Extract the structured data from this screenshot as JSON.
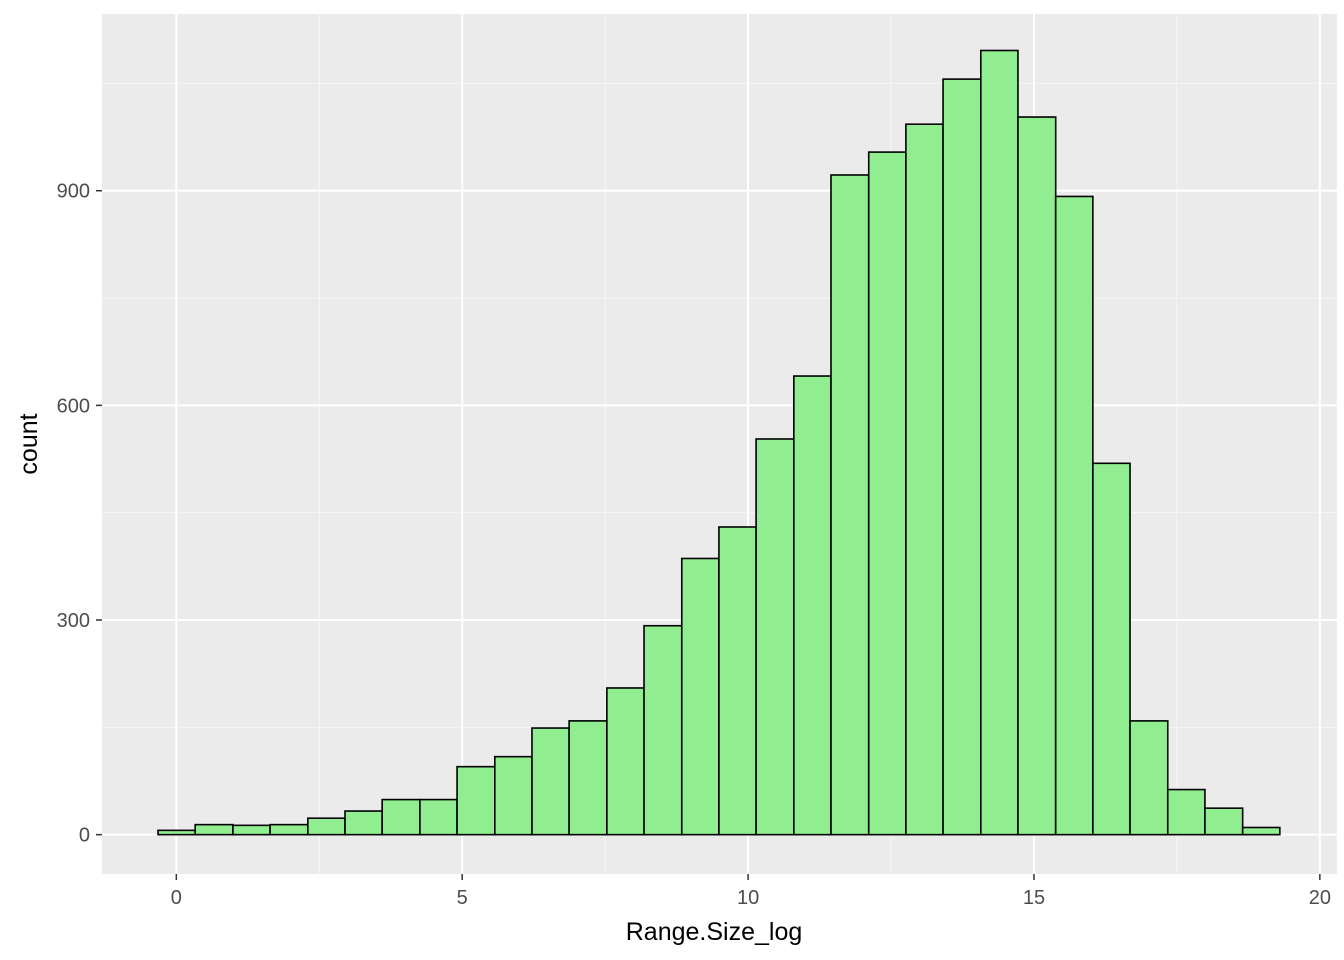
{
  "chart_data": {
    "type": "histogram",
    "title": "",
    "xlabel": "Range.Size_log",
    "ylabel": "count",
    "xlim": [
      -1.3,
      20.3
    ],
    "ylim": [
      -55,
      1147
    ],
    "x_ticks": [
      0,
      5,
      10,
      15,
      20
    ],
    "x_tick_labels": [
      "0",
      "5",
      "10",
      "15",
      "20"
    ],
    "y_ticks": [
      0,
      300,
      600,
      900
    ],
    "y_tick_labels": [
      "0",
      "300",
      "600",
      "900"
    ],
    "grid": true,
    "legend": "none",
    "bin_width": 0.654,
    "bins": [
      {
        "x_start": -0.32,
        "x_end": 0.33,
        "count": 6
      },
      {
        "x_start": 0.33,
        "x_end": 0.99,
        "count": 14
      },
      {
        "x_start": 0.99,
        "x_end": 1.64,
        "count": 13
      },
      {
        "x_start": 1.64,
        "x_end": 2.3,
        "count": 14
      },
      {
        "x_start": 2.3,
        "x_end": 2.95,
        "count": 23
      },
      {
        "x_start": 2.95,
        "x_end": 3.6,
        "count": 33
      },
      {
        "x_start": 3.6,
        "x_end": 4.26,
        "count": 49
      },
      {
        "x_start": 4.26,
        "x_end": 4.91,
        "count": 49
      },
      {
        "x_start": 4.91,
        "x_end": 5.57,
        "count": 95
      },
      {
        "x_start": 5.57,
        "x_end": 6.22,
        "count": 109
      },
      {
        "x_start": 6.22,
        "x_end": 6.87,
        "count": 149
      },
      {
        "x_start": 6.87,
        "x_end": 7.53,
        "count": 159
      },
      {
        "x_start": 7.53,
        "x_end": 8.18,
        "count": 205
      },
      {
        "x_start": 8.18,
        "x_end": 8.84,
        "count": 292
      },
      {
        "x_start": 8.84,
        "x_end": 9.49,
        "count": 386
      },
      {
        "x_start": 9.49,
        "x_end": 10.14,
        "count": 430
      },
      {
        "x_start": 10.14,
        "x_end": 10.8,
        "count": 553
      },
      {
        "x_start": 10.8,
        "x_end": 11.45,
        "count": 641
      },
      {
        "x_start": 11.45,
        "x_end": 12.11,
        "count": 922
      },
      {
        "x_start": 12.11,
        "x_end": 12.76,
        "count": 954
      },
      {
        "x_start": 12.76,
        "x_end": 13.41,
        "count": 993
      },
      {
        "x_start": 13.41,
        "x_end": 14.07,
        "count": 1056
      },
      {
        "x_start": 14.07,
        "x_end": 14.72,
        "count": 1096
      },
      {
        "x_start": 14.72,
        "x_end": 15.38,
        "count": 1003
      },
      {
        "x_start": 15.38,
        "x_end": 16.03,
        "count": 892
      },
      {
        "x_start": 16.03,
        "x_end": 16.68,
        "count": 519
      },
      {
        "x_start": 16.68,
        "x_end": 17.34,
        "count": 159
      },
      {
        "x_start": 17.34,
        "x_end": 17.99,
        "count": 63
      },
      {
        "x_start": 17.99,
        "x_end": 18.65,
        "count": 37
      },
      {
        "x_start": 18.65,
        "x_end": 19.3,
        "count": 10
      }
    ],
    "colors": {
      "panel_background": "#ebebeb",
      "grid_major": "#ffffff",
      "grid_minor": "#f6f6f6",
      "bar_fill": "#90ee90",
      "bar_outline": "#000000",
      "tick_color": "#333333"
    }
  }
}
